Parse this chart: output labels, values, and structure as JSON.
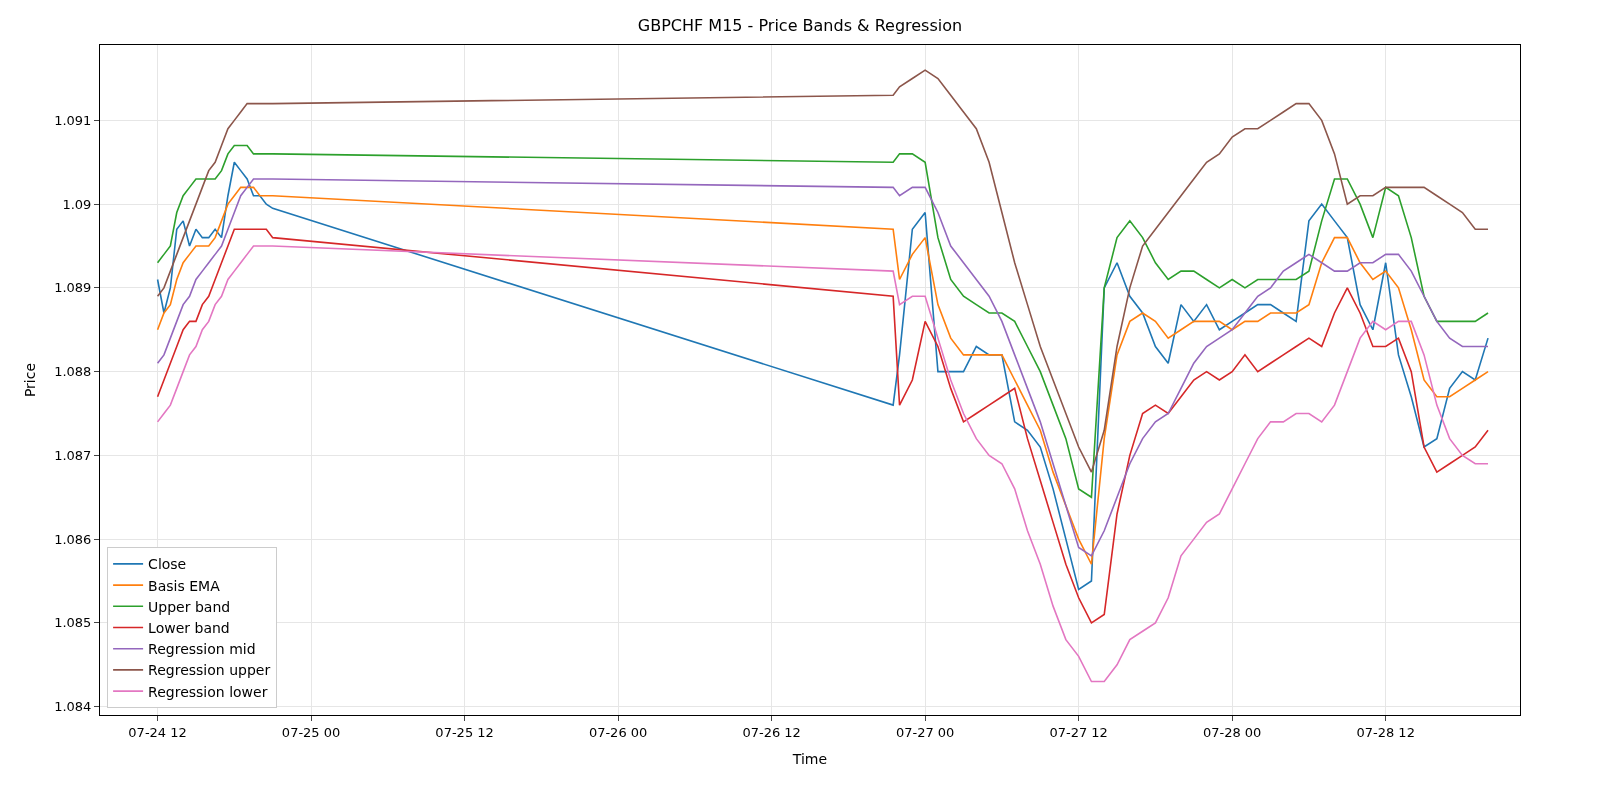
{
  "chart_data": {
    "type": "line",
    "title": "GBPCHF M15 - Price Bands & Regression",
    "xlabel": "Time",
    "ylabel": "Price",
    "x": [
      "--07-24T12:00",
      "--07-24T12:30",
      "--07-24T13:00",
      "--07-24T13:30",
      "--07-24T14:00",
      "--07-24T14:30",
      "--07-24T15:00",
      "--07-24T15:30",
      "--07-24T16:00",
      "--07-24T16:30",
      "--07-24T17:00",
      "--07-24T17:30",
      "--07-24T18:00",
      "--07-24T18:30",
      "--07-24T19:00",
      "--07-24T19:30",
      "--07-24T20:00",
      "--07-24T20:30",
      "--07-24T21:00",
      "--07-26T21:30",
      "--07-26T22:00",
      "--07-26T23:00",
      "--07-27T00:00",
      "--07-27T01:00",
      "--07-27T02:00",
      "--07-27T03:00",
      "--07-27T04:00",
      "--07-27T05:00",
      "--07-27T06:00",
      "--07-27T07:00",
      "--07-27T08:00",
      "--07-27T09:00",
      "--07-27T10:00",
      "--07-27T11:00",
      "--07-27T12:00",
      "--07-27T13:00",
      "--07-27T14:00",
      "--07-27T15:00",
      "--07-27T16:00",
      "--07-27T17:00",
      "--07-27T18:00",
      "--07-27T19:00",
      "--07-27T20:00",
      "--07-27T21:00",
      "--07-27T22:00",
      "--07-27T23:00",
      "--07-28T00:00",
      "--07-28T01:00",
      "--07-28T02:00",
      "--07-28T03:00",
      "--07-28T04:00",
      "--07-28T05:00",
      "--07-28T06:00",
      "--07-28T07:00",
      "--07-28T08:00",
      "--07-28T09:00",
      "--07-28T10:00",
      "--07-28T11:00",
      "--07-28T12:00",
      "--07-28T13:00",
      "--07-28T14:00",
      "--07-28T15:00",
      "--07-28T16:00",
      "--07-28T17:00",
      "--07-28T18:00",
      "--07-28T19:00",
      "--07-28T20:00"
    ],
    "series": [
      {
        "name": "Close",
        "color": "#1f77b4",
        "values": [
          1.0891,
          1.0887,
          1.089,
          1.0897,
          1.0898,
          1.0895,
          1.0897,
          1.0896,
          1.0896,
          1.0897,
          1.0896,
          1.0901,
          1.0905,
          1.0904,
          1.0903,
          1.0901,
          1.0901,
          1.09,
          1.08995,
          1.0876,
          1.0882,
          1.0897,
          1.0899,
          1.088,
          1.088,
          1.088,
          1.0883,
          1.0882,
          1.0882,
          1.0874,
          1.0873,
          1.0871,
          1.0866,
          1.086,
          1.0854,
          1.0855,
          1.089,
          1.0893,
          1.0889,
          1.0887,
          1.0883,
          1.0881,
          1.0888,
          1.0886,
          1.0888,
          1.0885,
          1.0886,
          1.0887,
          1.0888,
          1.0888,
          1.0887,
          1.0886,
          1.0898,
          1.09,
          1.0898,
          1.0896,
          1.0888,
          1.0885,
          1.0893,
          1.0882,
          1.0877,
          1.0871,
          1.0872,
          1.0878,
          1.088,
          1.0879,
          1.0884
        ]
      },
      {
        "name": "Basis EMA",
        "color": "#ff7f0e",
        "values": [
          1.0885,
          1.0887,
          1.0888,
          1.0891,
          1.0893,
          1.0894,
          1.0895,
          1.0895,
          1.0895,
          1.0896,
          1.0898,
          1.09,
          1.0901,
          1.0902,
          1.0902,
          1.0902,
          1.0901,
          1.0901,
          1.0901,
          1.0897,
          1.0891,
          1.0894,
          1.0896,
          1.0888,
          1.0884,
          1.0882,
          1.0882,
          1.0882,
          1.0882,
          1.0879,
          1.0876,
          1.0873,
          1.0868,
          1.0864,
          1.086,
          1.0857,
          1.0872,
          1.0882,
          1.0886,
          1.0887,
          1.0886,
          1.0884,
          1.0885,
          1.0886,
          1.0886,
          1.0886,
          1.0885,
          1.0886,
          1.0886,
          1.0887,
          1.0887,
          1.0887,
          1.0888,
          1.0893,
          1.0896,
          1.0896,
          1.0893,
          1.0891,
          1.0892,
          1.089,
          1.0885,
          1.0879,
          1.0877,
          1.0877,
          1.0878,
          1.0879,
          1.088
        ]
      },
      {
        "name": "Upper band",
        "color": "#2ca02c",
        "values": [
          1.0893,
          1.0894,
          1.0895,
          1.0899,
          1.0901,
          1.0902,
          1.0903,
          1.0903,
          1.0903,
          1.0903,
          1.0904,
          1.0906,
          1.0907,
          1.0907,
          1.0907,
          1.0906,
          1.0906,
          1.0906,
          1.0906,
          1.0905,
          1.0906,
          1.0906,
          1.0905,
          1.0896,
          1.0891,
          1.0889,
          1.0888,
          1.0887,
          1.0887,
          1.0886,
          1.0883,
          1.088,
          1.0876,
          1.0872,
          1.0866,
          1.0865,
          1.089,
          1.0896,
          1.0898,
          1.0896,
          1.0893,
          1.0891,
          1.0892,
          1.0892,
          1.0891,
          1.089,
          1.0891,
          1.089,
          1.0891,
          1.0891,
          1.0891,
          1.0891,
          1.0892,
          1.0898,
          1.0903,
          1.0903,
          1.09,
          1.0896,
          1.0902,
          1.0901,
          1.0896,
          1.0889,
          1.0886,
          1.0886,
          1.0886,
          1.0886,
          1.0887
        ]
      },
      {
        "name": "Lower band",
        "color": "#d62728",
        "values": [
          1.0877,
          1.0879,
          1.0881,
          1.0883,
          1.0885,
          1.0886,
          1.0886,
          1.0888,
          1.0889,
          1.0891,
          1.0893,
          1.0895,
          1.0897,
          1.0897,
          1.0897,
          1.0897,
          1.0897,
          1.0897,
          1.0896,
          1.0889,
          1.0876,
          1.0879,
          1.0886,
          1.0883,
          1.0878,
          1.0874,
          1.0875,
          1.0876,
          1.0877,
          1.0878,
          1.0872,
          1.0867,
          1.0862,
          1.0857,
          1.0853,
          1.085,
          1.0851,
          1.0863,
          1.087,
          1.0875,
          1.0876,
          1.0875,
          1.0877,
          1.0879,
          1.088,
          1.0879,
          1.088,
          1.0882,
          1.088,
          1.0881,
          1.0882,
          1.0883,
          1.0884,
          1.0883,
          1.0887,
          1.089,
          1.0887,
          1.0883,
          1.0883,
          1.0884,
          1.088,
          1.0871,
          1.0868,
          1.0869,
          1.087,
          1.0871,
          1.0873
        ]
      },
      {
        "name": "Regression mid",
        "color": "#9467bd",
        "values": [
          1.0881,
          1.0882,
          1.0884,
          1.0886,
          1.0888,
          1.0889,
          1.0891,
          1.0892,
          1.0893,
          1.0894,
          1.0895,
          1.0897,
          1.0899,
          1.0901,
          1.0902,
          1.0903,
          1.0903,
          1.0903,
          1.0903,
          1.0902,
          1.0901,
          1.0902,
          1.0902,
          1.0899,
          1.0895,
          1.0893,
          1.0891,
          1.0889,
          1.0886,
          1.0882,
          1.0878,
          1.0874,
          1.0869,
          1.0864,
          1.0859,
          1.0858,
          1.0861,
          1.0865,
          1.0869,
          1.0872,
          1.0874,
          1.0875,
          1.0878,
          1.0881,
          1.0883,
          1.0884,
          1.0885,
          1.0887,
          1.0889,
          1.089,
          1.0892,
          1.0893,
          1.0894,
          1.0893,
          1.0892,
          1.0892,
          1.0893,
          1.0893,
          1.0894,
          1.0894,
          1.0892,
          1.0889,
          1.0886,
          1.0884,
          1.0883,
          1.0883,
          1.0883
        ]
      },
      {
        "name": "Regression upper",
        "color": "#8c564b",
        "values": [
          1.0889,
          1.089,
          1.0892,
          1.0894,
          1.0896,
          1.0898,
          1.09,
          1.0902,
          1.0904,
          1.0905,
          1.0907,
          1.0909,
          1.091,
          1.0911,
          1.0912,
          1.0912,
          1.0912,
          1.0912,
          1.0912,
          1.0913,
          1.0914,
          1.0915,
          1.0916,
          1.0915,
          1.0913,
          1.0911,
          1.0909,
          1.0905,
          1.0899,
          1.0893,
          1.0888,
          1.0883,
          1.0879,
          1.0875,
          1.0871,
          1.0868,
          1.0873,
          1.0883,
          1.089,
          1.0895,
          1.0897,
          1.0899,
          1.0901,
          1.0903,
          1.0905,
          1.0906,
          1.0908,
          1.0909,
          1.0909,
          1.091,
          1.0911,
          1.0912,
          1.0912,
          1.091,
          1.0906,
          1.09,
          1.0901,
          1.0901,
          1.0902,
          1.0902,
          1.0902,
          1.0902,
          1.0901,
          1.09,
          1.0899,
          1.0897,
          1.0897
        ]
      },
      {
        "name": "Regression lower",
        "color": "#e377c2",
        "values": [
          1.0874,
          1.0875,
          1.0876,
          1.0878,
          1.088,
          1.0882,
          1.0883,
          1.0885,
          1.0886,
          1.0888,
          1.0889,
          1.0891,
          1.0892,
          1.0893,
          1.0894,
          1.0895,
          1.0895,
          1.0895,
          1.0895,
          1.0892,
          1.0888,
          1.0889,
          1.0889,
          1.0884,
          1.0879,
          1.0875,
          1.0872,
          1.087,
          1.0869,
          1.0866,
          1.0861,
          1.0857,
          1.0852,
          1.0848,
          1.0846,
          1.0843,
          1.0843,
          1.0845,
          1.0848,
          1.0849,
          1.085,
          1.0853,
          1.0858,
          1.086,
          1.0862,
          1.0863,
          1.0866,
          1.0869,
          1.0872,
          1.0874,
          1.0874,
          1.0875,
          1.0875,
          1.0874,
          1.0876,
          1.088,
          1.0884,
          1.0886,
          1.0885,
          1.0886,
          1.0886,
          1.0882,
          1.0876,
          1.0872,
          1.087,
          1.0869,
          1.0869
        ]
      }
    ],
    "xlim": [
      "--07-24T07:30",
      "--07-28T22:30"
    ],
    "xticks": [
      {
        "value": "--07-24T12:00",
        "label": "07-24 12"
      },
      {
        "value": "--07-25T00:00",
        "label": "07-25 00"
      },
      {
        "value": "--07-25T12:00",
        "label": "07-25 12"
      },
      {
        "value": "--07-26T00:00",
        "label": "07-26 00"
      },
      {
        "value": "--07-26T12:00",
        "label": "07-26 12"
      },
      {
        "value": "--07-27T00:00",
        "label": "07-27 00"
      },
      {
        "value": "--07-27T12:00",
        "label": "07-27 12"
      },
      {
        "value": "--07-28T00:00",
        "label": "07-28 00"
      },
      {
        "value": "--07-28T12:00",
        "label": "07-28 12"
      }
    ],
    "ylim": [
      1.0839,
      1.0919
    ],
    "yticks": [
      1.084,
      1.085,
      1.086,
      1.087,
      1.088,
      1.089,
      1.09,
      1.091
    ],
    "grid": true,
    "legend": "bottom left",
    "line_style": "solid"
  }
}
